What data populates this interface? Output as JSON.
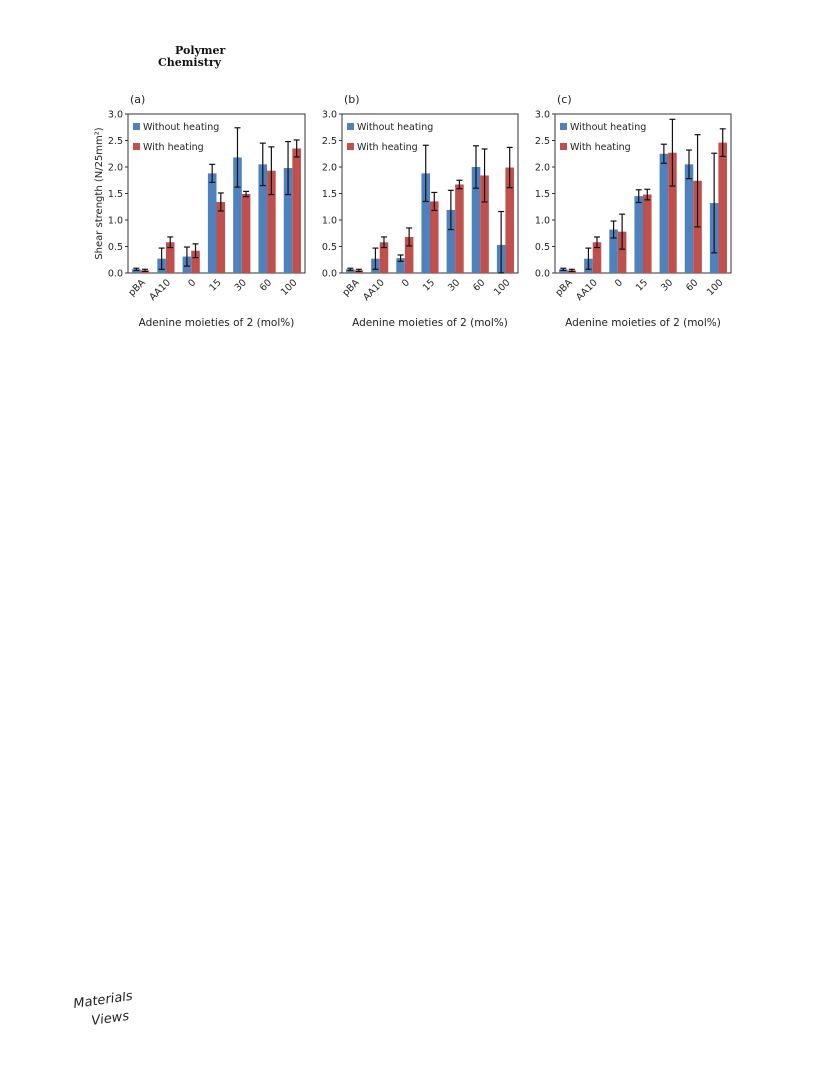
{
  "header": {
    "line1": "Polymer",
    "line2": "Chemistry"
  },
  "footer": {
    "logo_line1": "Materials",
    "logo_line2": "Views"
  },
  "colors": {
    "without_heating": "#4f81bd",
    "with_heating": "#c0504d"
  },
  "chart_data": [
    {
      "type": "bar",
      "panel_label": "(a)",
      "categories": [
        "pBA",
        "AA10",
        "0",
        "15",
        "30",
        "60",
        "100"
      ],
      "ylabel": "Shear strength (N/25mm²)",
      "xlabel": "Adenine moieties of 2 (mol%)",
      "ylim": [
        0,
        3.0
      ],
      "yticks": [
        "0.0",
        "0.5",
        "1.0",
        "1.5",
        "2.0",
        "2.5",
        "3.0"
      ],
      "legend_position": "top-left",
      "series": [
        {
          "name": "Without heating",
          "values": [
            0.07,
            0.27,
            0.31,
            1.88,
            2.18,
            2.05,
            1.98
          ],
          "errors": [
            0.02,
            0.2,
            0.18,
            0.17,
            0.56,
            0.4,
            0.5
          ]
        },
        {
          "name": "With heating",
          "values": [
            0.05,
            0.58,
            0.42,
            1.34,
            1.49,
            1.93,
            2.35
          ],
          "errors": [
            0.02,
            0.1,
            0.13,
            0.17,
            0.05,
            0.45,
            0.16
          ]
        }
      ]
    },
    {
      "type": "bar",
      "panel_label": "(b)",
      "categories": [
        "pBA",
        "AA10",
        "0",
        "15",
        "30",
        "60",
        "100"
      ],
      "ylabel": "",
      "xlabel": "Adenine moieties of 2 (mol%)",
      "ylim": [
        0,
        3.0
      ],
      "yticks": [
        "0.0",
        "0.5",
        "1.0",
        "1.5",
        "2.0",
        "2.5",
        "3.0"
      ],
      "legend_position": "top-left",
      "series": [
        {
          "name": "Without heating",
          "values": [
            0.07,
            0.27,
            0.28,
            1.88,
            1.19,
            2.0,
            0.53
          ],
          "errors": [
            0.02,
            0.2,
            0.06,
            0.53,
            0.37,
            0.4,
            0.63
          ]
        },
        {
          "name": "With heating",
          "values": [
            0.05,
            0.58,
            0.68,
            1.35,
            1.67,
            1.84,
            1.99
          ],
          "errors": [
            0.02,
            0.1,
            0.17,
            0.17,
            0.08,
            0.5,
            0.38
          ]
        }
      ]
    },
    {
      "type": "bar",
      "panel_label": "(c)",
      "categories": [
        "pBA",
        "AA10",
        "0",
        "15",
        "30",
        "60",
        "100"
      ],
      "ylabel": "",
      "xlabel": "Adenine moieties of 2 (mol%)",
      "ylim": [
        0,
        3.0
      ],
      "yticks": [
        "0.0",
        "0.5",
        "1.0",
        "1.5",
        "2.0",
        "2.5",
        "3.0"
      ],
      "legend_position": "top-left",
      "series": [
        {
          "name": "Without heating",
          "values": [
            0.07,
            0.27,
            0.82,
            1.45,
            2.25,
            2.05,
            1.32
          ],
          "errors": [
            0.02,
            0.2,
            0.16,
            0.12,
            0.18,
            0.27,
            0.94
          ]
        },
        {
          "name": "With heating",
          "values": [
            0.05,
            0.58,
            0.78,
            1.48,
            2.27,
            1.74,
            2.46
          ],
          "errors": [
            0.02,
            0.1,
            0.33,
            0.1,
            0.63,
            0.87,
            0.26
          ]
        }
      ]
    }
  ]
}
